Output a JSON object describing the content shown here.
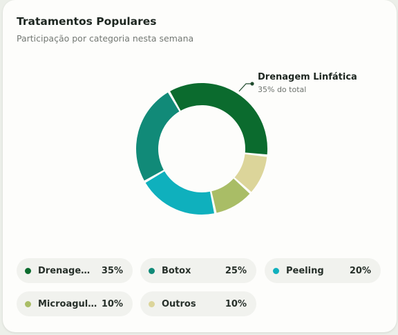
{
  "header": {
    "title": "Tratamentos Populares",
    "subtitle": "Participação por categoria nesta semana"
  },
  "colors": {
    "drenagem": "#0b6b2e",
    "botox": "#118a78",
    "peeling": "#0fb0bd",
    "microagulhamento": "#a9bd66",
    "outros": "#dcd59a"
  },
  "chart_data": {
    "type": "pie",
    "title": "Tratamentos Populares",
    "subtitle": "Participação por categoria nesta semana",
    "series": [
      {
        "name": "Drenagem Linfática",
        "value": 35,
        "color": "#0b6b2e"
      },
      {
        "name": "Outros",
        "value": 10,
        "color": "#dcd59a"
      },
      {
        "name": "Microagulhamento",
        "value": 10,
        "color": "#a9bd66"
      },
      {
        "name": "Peeling",
        "value": 20,
        "color": "#0fb0bd"
      },
      {
        "name": "Botox",
        "value": 25,
        "color": "#118a78"
      }
    ],
    "callout": {
      "label": "Drenagem Linfática",
      "sublabel": "35% do total"
    }
  },
  "legend": {
    "items": [
      {
        "label": "Drenagem L...",
        "value": "35%",
        "color": "#0b6b2e"
      },
      {
        "label": "Botox",
        "value": "25%",
        "color": "#118a78"
      },
      {
        "label": "Peeling",
        "value": "20%",
        "color": "#0fb0bd"
      },
      {
        "label": "Microagulha...",
        "value": "10%",
        "color": "#a9bd66"
      },
      {
        "label": "Outros",
        "value": "10%",
        "color": "#dcd59a"
      }
    ]
  }
}
